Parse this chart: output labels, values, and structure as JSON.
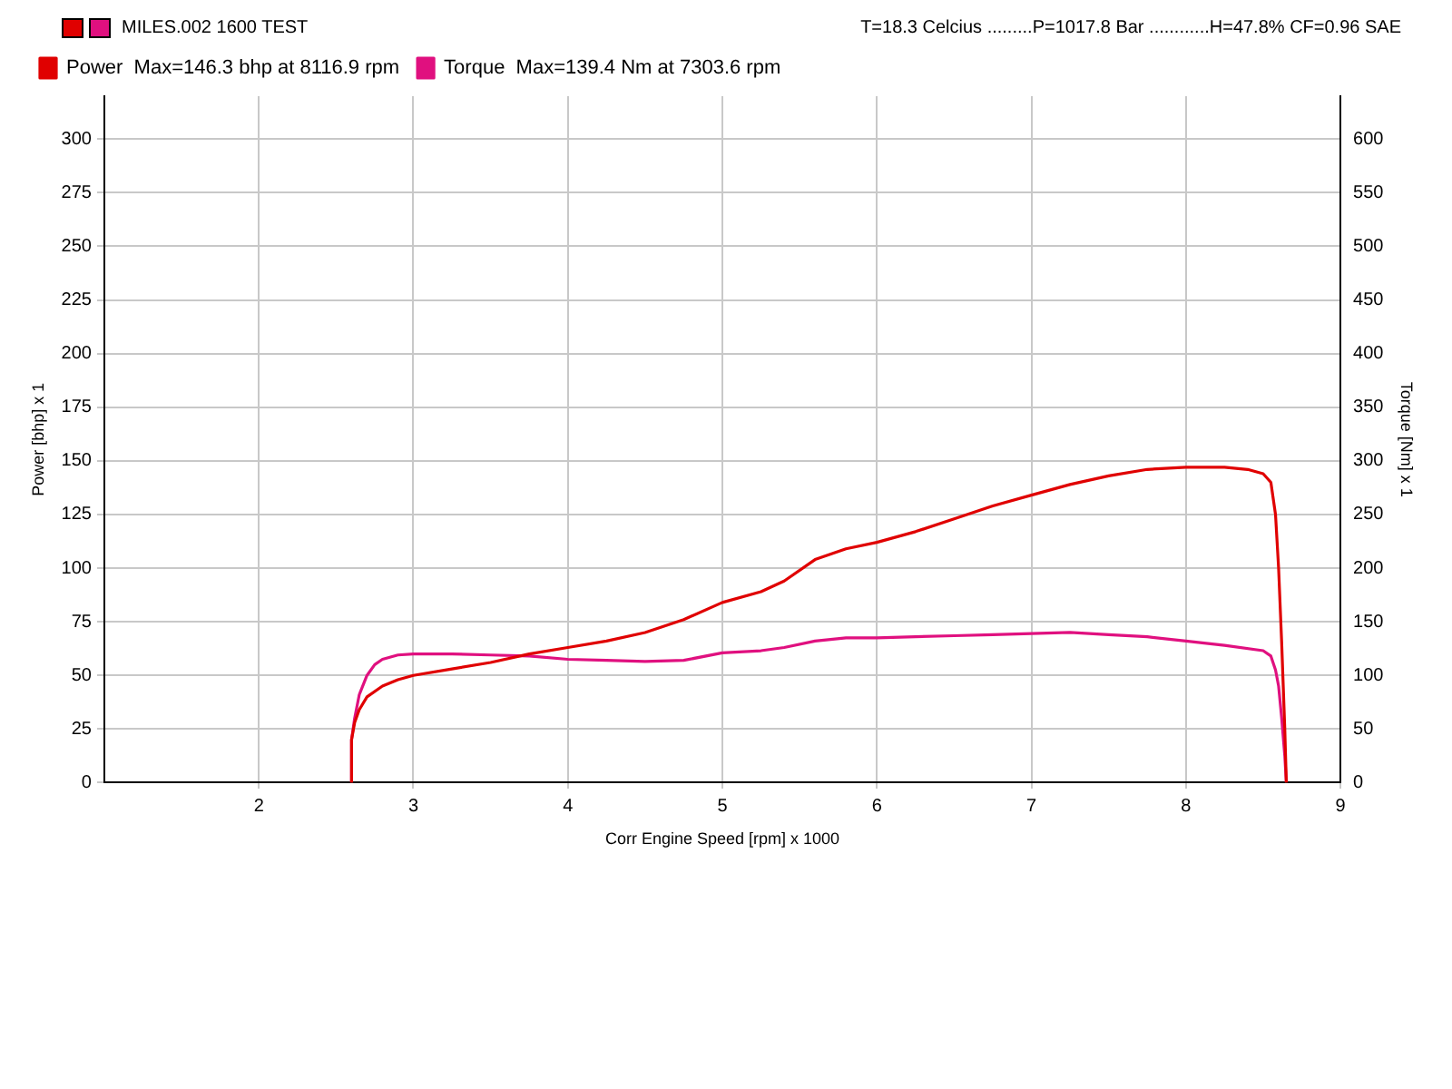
{
  "chart_data": {
    "type": "line",
    "title": "MILES.002 1600 TEST",
    "annotations": [
      "T=18.3 Celcius .........P=1017.8 Bar ............H=47.8% CF=0.96 SAE"
    ],
    "xlabel": "Corr Engine Speed [rpm] x 1000",
    "ylabel": "Power [bhp] x 1",
    "y2label": "Torque [Nm] x 1",
    "xlim": [
      1,
      9
    ],
    "xticks": [
      2,
      3,
      4,
      5,
      6,
      7,
      8,
      9
    ],
    "ylim": [
      0,
      320
    ],
    "yticks": [
      0,
      25,
      50,
      75,
      100,
      125,
      150,
      175,
      200,
      225,
      250,
      275,
      300
    ],
    "y2lim": [
      0,
      640
    ],
    "y2ticks": [
      0,
      50,
      100,
      150,
      200,
      250,
      300,
      350,
      400,
      450,
      500,
      550,
      600
    ],
    "grid": true,
    "legend": "top left",
    "line_style": "solid",
    "marker": "none",
    "series": [
      {
        "name": "Power  Max=146.3 bhp at 8116.9 rpm",
        "color": "#e00000",
        "x": [
          2.6,
          2.6,
          2.62,
          2.65,
          2.7,
          2.8,
          2.9,
          3,
          3.25,
          3.5,
          3.75,
          4,
          4.25,
          4.5,
          4.75,
          5,
          5.25,
          5.4,
          5.6,
          5.8,
          6,
          6.25,
          6.5,
          6.75,
          7,
          7.25,
          7.5,
          7.75,
          8,
          8.25,
          8.4,
          8.5,
          8.55,
          8.58,
          8.6,
          8.62,
          8.64,
          8.65
        ],
        "values": [
          0,
          20,
          28,
          34,
          40,
          45,
          48,
          50,
          53,
          56,
          60,
          63,
          66,
          70,
          76,
          84,
          89,
          94,
          104,
          109,
          112,
          117,
          123,
          129,
          134,
          139,
          143,
          146,
          147,
          147,
          146,
          144,
          140,
          125,
          100,
          65,
          25,
          0
        ]
      },
      {
        "name": "Torque  Max=139.4 Nm at 7303.6 rpm",
        "color": "#e0107f",
        "axis": "y2",
        "x": [
          2.6,
          2.6,
          2.62,
          2.65,
          2.7,
          2.75,
          2.8,
          2.9,
          3,
          3.25,
          3.5,
          3.75,
          4,
          4.25,
          4.5,
          4.75,
          5,
          5.25,
          5.4,
          5.6,
          5.8,
          6,
          6.25,
          6.5,
          6.75,
          7,
          7.25,
          7.5,
          7.75,
          8,
          8.25,
          8.5,
          8.55,
          8.58,
          8.6,
          8.62,
          8.64,
          8.65
        ],
        "values": [
          0,
          40,
          60,
          82,
          100,
          110,
          115,
          119,
          120,
          120,
          119,
          118,
          115,
          114,
          113,
          114,
          121,
          123,
          126,
          132,
          135,
          135,
          136,
          137,
          138,
          139,
          140,
          138,
          136,
          132,
          128,
          123,
          118,
          105,
          90,
          60,
          25,
          0
        ]
      }
    ]
  }
}
